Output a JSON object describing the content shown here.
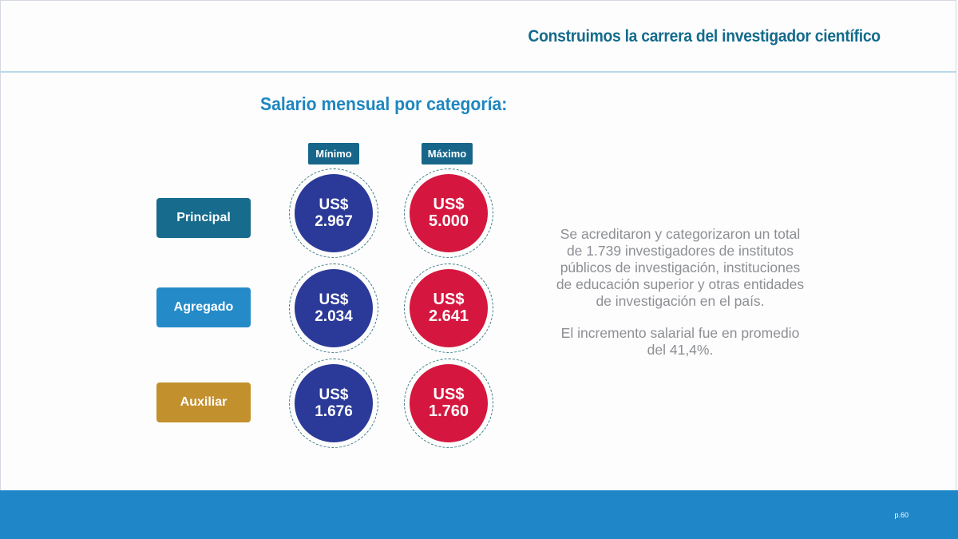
{
  "header": {
    "title": "Construimos la carrera del investigador científico"
  },
  "section": {
    "title": "Salario mensual por categoría:"
  },
  "columns": {
    "min": "Mínimo",
    "max": "Máximo"
  },
  "rows": [
    {
      "label": "Principal",
      "min_currency": "US$",
      "min_value": "2.967",
      "max_currency": "US$",
      "max_value": "5.000"
    },
    {
      "label": "Agregado",
      "min_currency": "US$",
      "min_value": "2.034",
      "max_currency": "US$",
      "max_value": "2.641"
    },
    {
      "label": "Auxiliar",
      "min_currency": "US$",
      "min_value": "1.676",
      "max_currency": "US$",
      "max_value": "1.760"
    }
  ],
  "description": {
    "paragraph1": "Se acreditaron y categorizaron un total de 1.739 investigadores de institutos públicos de investigación, instituciones de educación superior y otras entidades de investigación en el país.",
    "paragraph2": "El incremento salarial fue en promedio del 41,4%."
  },
  "footer": {
    "page": "p.60"
  },
  "colors": {
    "header_text": "#136b8c",
    "section_title": "#1e86c0",
    "principal": "#176b8c",
    "agregado": "#258bc8",
    "auxiliar": "#c3902e",
    "min_coin": "#2b3a98",
    "max_coin": "#d5173f",
    "footer_bar": "#1f86c7"
  }
}
